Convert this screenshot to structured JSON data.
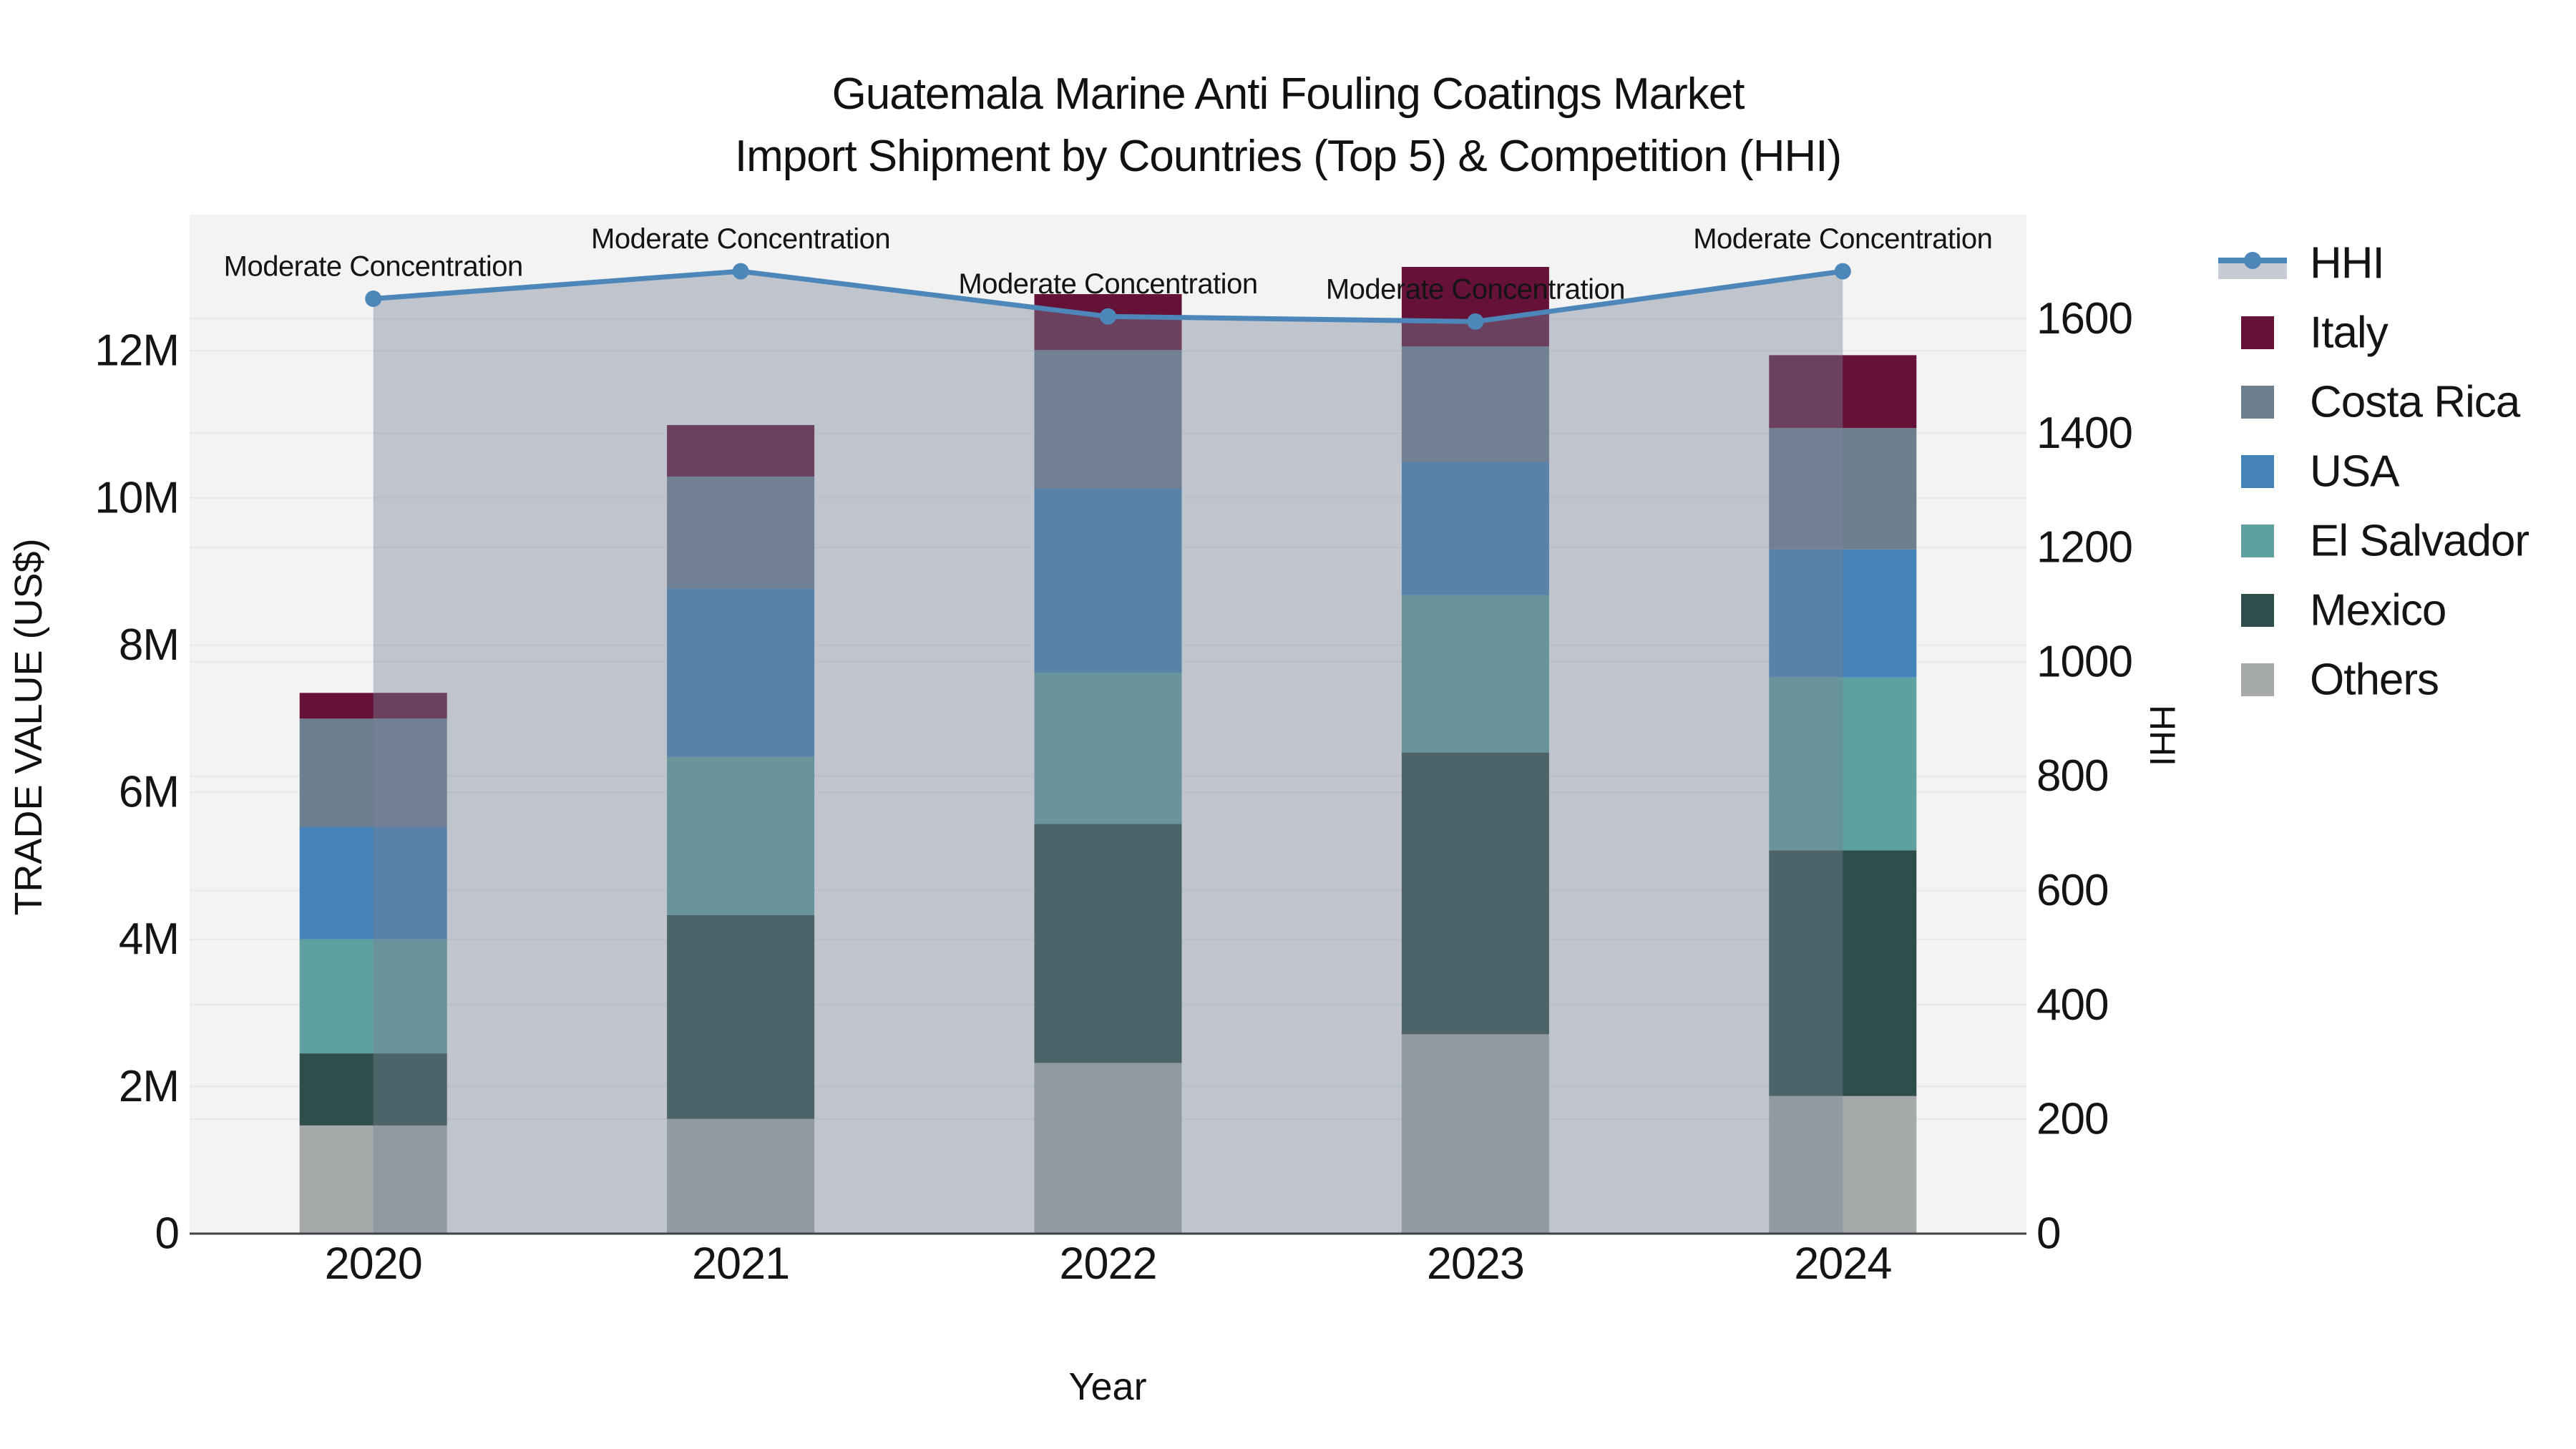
{
  "title": {
    "line1": "Guatemala Marine Anti Fouling Coatings Market",
    "line2": "Import Shipment by Countries (Top 5) & Competition (HHI)"
  },
  "chart_data": {
    "type": "combo_stacked_bar_line",
    "title": "Guatemala Marine Anti Fouling Coatings Market Import Shipment by Countries (Top 5) & Competition (HHI)",
    "categories": [
      "2020",
      "2021",
      "2022",
      "2023",
      "2024"
    ],
    "xlabel": "Year",
    "ylabel_left": "TRADE VALUE (US$)",
    "ylabel_right": "HHI",
    "bar_value_unit": "million US$",
    "bar_stack_order_bottom_to_top": [
      "Others",
      "Mexico",
      "El Salvador",
      "USA",
      "Costa Rica",
      "Italy"
    ],
    "bar_series": [
      {
        "name": "Others",
        "color": "#a6a9aa",
        "values": [
          1.47,
          1.56,
          2.32,
          2.71,
          1.87
        ]
      },
      {
        "name": "Mexico",
        "color": "#2f4d4a",
        "values": [
          0.98,
          2.77,
          3.25,
          3.83,
          3.34
        ]
      },
      {
        "name": "El Salvador",
        "color": "#5fa0a0",
        "values": [
          1.55,
          2.15,
          2.06,
          2.14,
          2.35
        ]
      },
      {
        "name": "USA",
        "color": "#4482b7",
        "values": [
          1.53,
          2.29,
          2.5,
          1.81,
          1.74
        ]
      },
      {
        "name": "Costa Rica",
        "color": "#6d7e8f",
        "values": [
          1.47,
          1.52,
          1.88,
          1.57,
          1.65
        ]
      },
      {
        "name": "Italy",
        "color": "#651138",
        "values": [
          0.35,
          0.7,
          0.76,
          1.08,
          0.99
        ]
      }
    ],
    "bar_totals_millions": [
      7.35,
      10.99,
      12.77,
      13.14,
      11.94
    ],
    "line_series": {
      "name": "HHI",
      "color": "#4d86b8",
      "values": [
        1635,
        1683,
        1604,
        1595,
        1683
      ]
    },
    "annotations": [
      {
        "x": "2020",
        "text": "Moderate Concentration"
      },
      {
        "x": "2021",
        "text": "Moderate Concentration"
      },
      {
        "x": "2022",
        "text": "Moderate Concentration"
      },
      {
        "x": "2023",
        "text": "Moderate Concentration"
      },
      {
        "x": "2024",
        "text": "Moderate Concentration"
      }
    ],
    "y_left": {
      "tick_values": [
        0,
        2,
        4,
        6,
        8,
        10,
        12
      ],
      "tick_labels": [
        "0",
        "2M",
        "4M",
        "6M",
        "8M",
        "10M",
        "12M"
      ],
      "range": [
        0,
        13.85
      ]
    },
    "y_right": {
      "tick_values": [
        0,
        200,
        400,
        600,
        800,
        1000,
        1200,
        1400,
        1600
      ],
      "tick_labels": [
        "0",
        "200",
        "400",
        "600",
        "800",
        "1000",
        "1200",
        "1400",
        "1600"
      ],
      "range": [
        0,
        1782
      ]
    },
    "legend_order": [
      "HHI",
      "Italy",
      "Costa Rica",
      "USA",
      "El Salvador",
      "Mexico",
      "Others"
    ],
    "colors": {
      "plot_background": "#f3f3f4",
      "grid": "#e7e8ea",
      "axis_line": "#3f4247",
      "fill_under_line": "rgba(120,130,150,0.42)",
      "text": "#141414"
    },
    "grid_on": true,
    "legend_position": "right"
  }
}
